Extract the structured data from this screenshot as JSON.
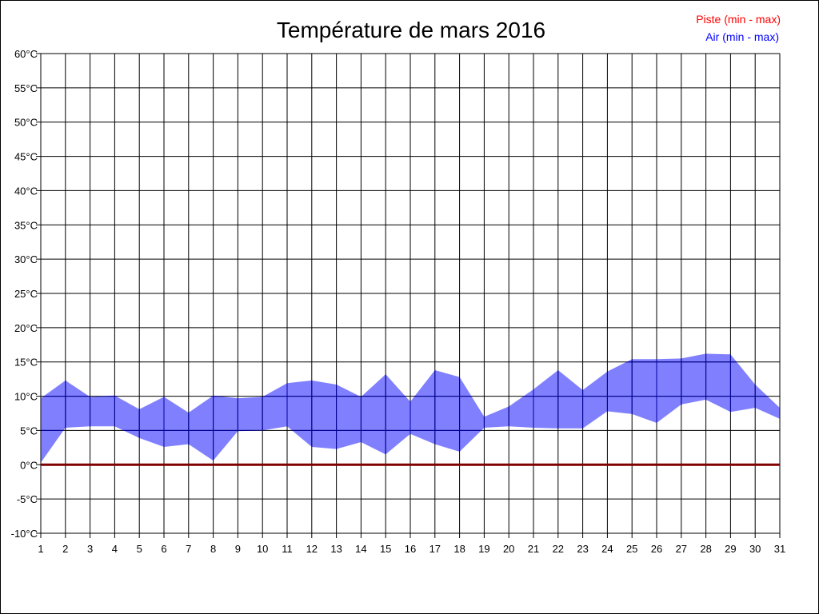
{
  "chart_data": {
    "type": "area",
    "title": "Température de mars 2016",
    "x": [
      1,
      2,
      3,
      4,
      5,
      6,
      7,
      8,
      9,
      10,
      11,
      12,
      13,
      14,
      15,
      16,
      17,
      18,
      19,
      20,
      21,
      22,
      23,
      24,
      25,
      26,
      27,
      28,
      29,
      30,
      31
    ],
    "ylim": [
      -10,
      60
    ],
    "yticks": [
      "-10°C",
      "-5°C",
      "0°C",
      "5°C",
      "10°C",
      "15°C",
      "20°C",
      "25°C",
      "30°C",
      "35°C",
      "40°C",
      "45°C",
      "50°C",
      "55°C",
      "60°C"
    ],
    "grid": true,
    "legend_position": "top-right",
    "series": [
      {
        "name": "Piste (min - max)",
        "color": "#ff0000",
        "line_color": "#800000",
        "min": [
          0,
          0,
          0,
          0,
          0,
          0,
          0,
          0,
          0,
          0,
          0,
          0,
          0,
          0,
          0,
          0,
          0,
          0,
          0,
          0,
          0,
          0,
          0,
          0,
          0,
          0,
          0,
          0,
          0,
          0,
          0
        ],
        "max": [
          0,
          0,
          0,
          0,
          0,
          0,
          0,
          0,
          0,
          0,
          0,
          0,
          0,
          0,
          0,
          0,
          0,
          0,
          0,
          0,
          0,
          0,
          0,
          0,
          0,
          0,
          0,
          0,
          0,
          0,
          0
        ]
      },
      {
        "name": "Air (min - max)",
        "color": "#0000ff",
        "fill": "#8080ff",
        "min": [
          0.3,
          5.4,
          5.6,
          5.6,
          3.9,
          2.6,
          3.0,
          0.6,
          4.9,
          5.0,
          5.6,
          2.6,
          2.3,
          3.3,
          1.5,
          4.5,
          3.0,
          1.9,
          5.4,
          5.6,
          5.4,
          5.3,
          5.3,
          7.8,
          7.4,
          6.1,
          8.8,
          9.5,
          7.7,
          8.3,
          6.7
        ],
        "max": [
          9.7,
          12.3,
          9.9,
          10.1,
          8.1,
          9.9,
          7.6,
          10.1,
          9.7,
          9.9,
          11.9,
          12.3,
          11.7,
          9.9,
          13.2,
          9.2,
          13.8,
          12.8,
          7.0,
          8.5,
          11.0,
          13.8,
          10.9,
          13.6,
          15.4,
          15.4,
          15.5,
          16.2,
          16.1,
          11.7,
          8.3
        ]
      }
    ]
  }
}
